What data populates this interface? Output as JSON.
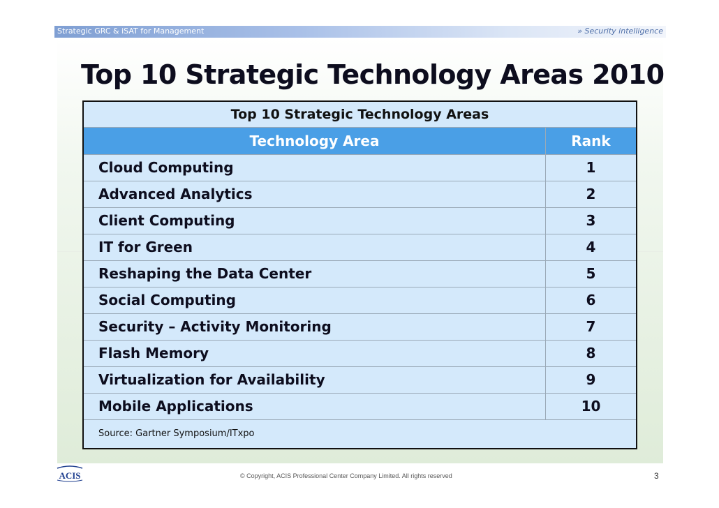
{
  "header": {
    "left_text": "Strategic GRC & iSAT for Management",
    "right_text": "» Security intelligence"
  },
  "slide": {
    "title": "Top 10 Strategic Technology Areas 2010"
  },
  "table": {
    "caption": "Top 10 Strategic Technology Areas",
    "columns": [
      "Technology Area",
      "Rank"
    ],
    "rows": [
      {
        "area": "Cloud Computing",
        "rank": "1"
      },
      {
        "area": "Advanced Analytics",
        "rank": "2"
      },
      {
        "area": "Client Computing",
        "rank": "3"
      },
      {
        "area": "IT for Green",
        "rank": "4"
      },
      {
        "area": "Reshaping the Data Center",
        "rank": "5"
      },
      {
        "area": "Social Computing",
        "rank": "6"
      },
      {
        "area": "Security – Activity Monitoring",
        "rank": "7"
      },
      {
        "area": "Flash Memory",
        "rank": "8"
      },
      {
        "area": "Virtualization for Availability",
        "rank": "9"
      },
      {
        "area": "Mobile Applications",
        "rank": "10"
      }
    ],
    "source": "Source: Gartner Symposium/ITxpo"
  },
  "footer": {
    "logo_text": "ACIS",
    "copyright": "© Copyright, ACIS Professional Center Company Limited. All rights reserved",
    "page_number": "3"
  },
  "colors": {
    "table_header": "#4a9fe6",
    "table_body": "#d4e9fb",
    "logo": "#1f3f8f"
  }
}
